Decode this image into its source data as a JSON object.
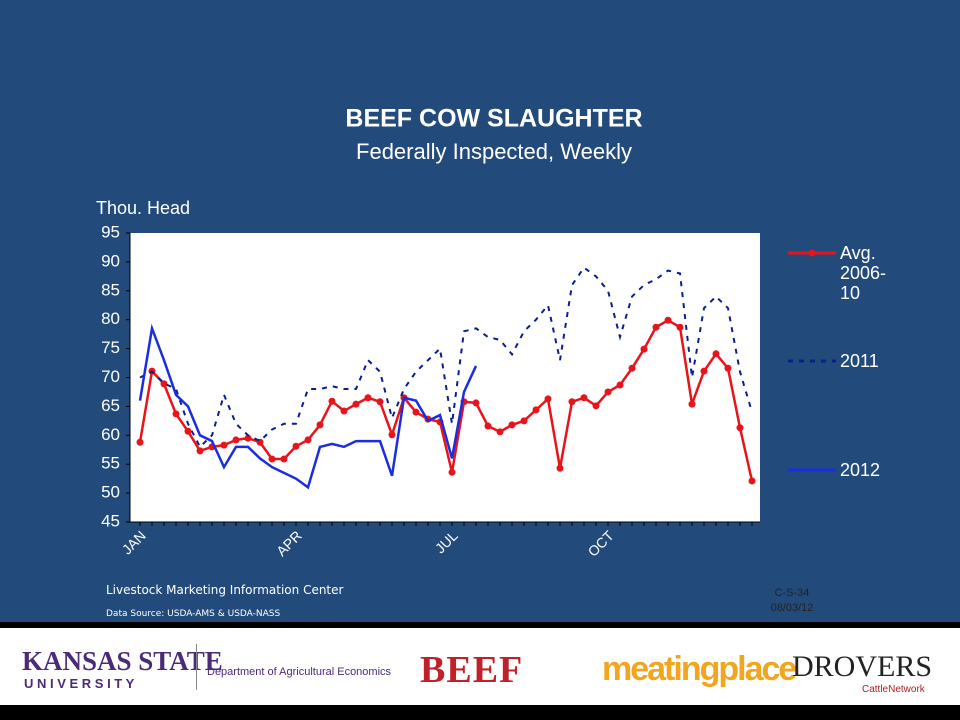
{
  "chart_data": {
    "type": "line",
    "title": "BEEF  COW  SLAUGHTER",
    "subtitle": "Federally Inspected, Weekly",
    "y_label": "Thou. Head",
    "categories": [
      "JAN",
      null,
      null,
      null,
      null,
      null,
      null,
      null,
      null,
      null,
      null,
      null,
      null,
      "APR",
      null,
      null,
      null,
      null,
      null,
      null,
      null,
      null,
      null,
      null,
      null,
      null,
      "JUL",
      null,
      null,
      null,
      null,
      null,
      null,
      null,
      null,
      null,
      null,
      null,
      null,
      "OCT",
      null,
      null,
      null,
      null,
      null,
      null,
      null,
      null,
      null,
      null,
      null,
      null
    ],
    "ylim": [
      45,
      95
    ],
    "yticks": [
      45,
      50,
      55,
      60,
      65,
      70,
      75,
      80,
      85,
      90,
      95
    ],
    "grid": false,
    "legend": "right",
    "series": [
      {
        "name": "Avg. 2006-10",
        "color": "#e8141c",
        "line_style": "solid",
        "markers": true,
        "values": [
          58.8,
          71.1,
          68.9,
          63.7,
          60.7,
          57.3,
          58.0,
          58.3,
          59.2,
          59.5,
          58.8,
          55.9,
          55.9,
          58.1,
          59.2,
          61.8,
          65.9,
          64.2,
          65.4,
          66.5,
          65.8,
          60.1,
          66.5,
          64.0,
          62.8,
          62.3,
          53.6,
          65.8,
          65.6,
          61.6,
          60.6,
          61.8,
          62.5,
          64.4,
          66.3,
          54.3,
          65.8,
          66.5,
          65.1,
          67.5,
          68.7,
          71.6,
          74.9,
          78.7,
          79.9,
          78.7,
          65.4,
          71.1,
          74.1,
          71.6,
          61.3,
          52.1
        ]
      },
      {
        "name": "2011",
        "color": "#0a1f8f",
        "line_style": "dashed",
        "markers": false,
        "values": [
          70,
          71,
          69,
          68,
          62,
          58,
          60,
          67,
          62,
          60,
          59,
          61,
          62,
          62,
          68,
          68,
          68.5,
          68,
          68,
          73,
          71,
          63,
          68,
          71,
          73,
          75,
          62,
          78,
          78.5,
          77,
          76.5,
          74,
          78,
          80,
          82.5,
          73,
          86,
          89,
          87.5,
          85,
          77,
          84,
          86,
          87,
          88.5,
          88,
          70,
          82,
          84,
          82,
          71,
          64
        ]
      },
      {
        "name": "2012",
        "color": "#1a2ee0",
        "line_style": "solid",
        "markers": false,
        "values": [
          66,
          78.5,
          73,
          67,
          65,
          60,
          59,
          54.5,
          58,
          58,
          56,
          54.5,
          53.5,
          52.5,
          51,
          58,
          58.5,
          58,
          59,
          59,
          59,
          53,
          66.5,
          66,
          62.5,
          63.5,
          56,
          67.5,
          72,
          null,
          null,
          null,
          null,
          null,
          null,
          null,
          null,
          null,
          null,
          null,
          null,
          null,
          null,
          null,
          null,
          null,
          null,
          null,
          null,
          null,
          null,
          null
        ]
      }
    ]
  },
  "notes": {
    "center": "Livestock Marketing Information Center",
    "source": "Data Source:  USDA-AMS & USDA-NASS",
    "code": "C-S-34",
    "date": "08/03/12"
  },
  "footer": {
    "ksu": "KANSAS STATE",
    "ksu_sub": "U N I V E R S I T Y",
    "department": "Department of Agricultural Economics",
    "beef": "BEEF",
    "meatingplace": "meatingplace",
    "drovers": "DROVERS",
    "drovers_sub": "CattleNetwork"
  }
}
